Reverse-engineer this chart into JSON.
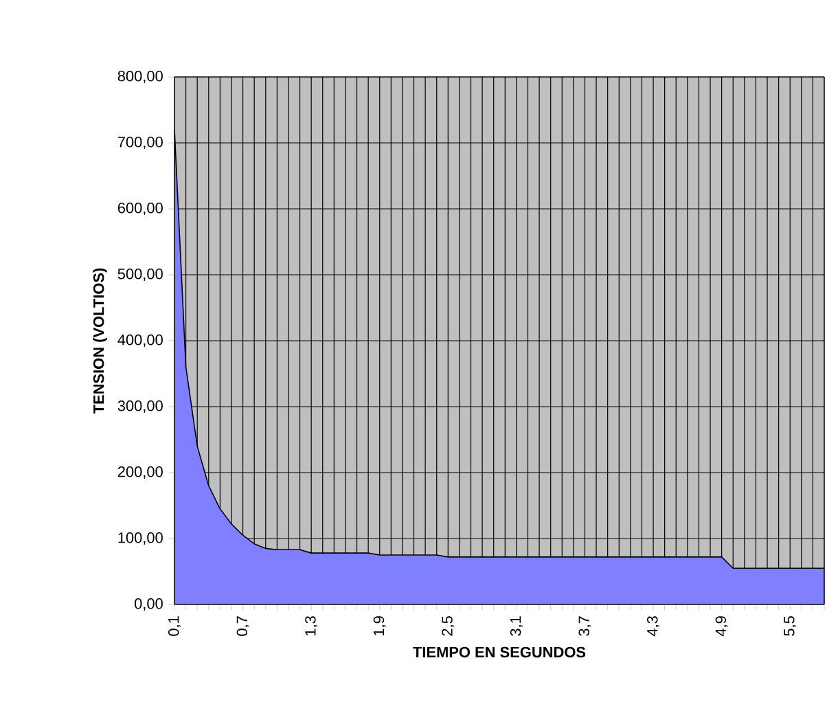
{
  "chart_data": {
    "type": "area",
    "xlabel": "TIEMPO EN SEGUNDOS",
    "ylabel": "TENSION (VOLTIOS)",
    "categories": [
      "0,1",
      null,
      null,
      null,
      null,
      null,
      "0,7",
      null,
      null,
      null,
      null,
      null,
      "1,3",
      null,
      null,
      null,
      null,
      null,
      "1,9",
      null,
      null,
      null,
      null,
      null,
      "2,5",
      null,
      null,
      null,
      null,
      null,
      "3,1",
      null,
      null,
      null,
      null,
      null,
      "3,7",
      null,
      null,
      null,
      null,
      null,
      "4,3",
      null,
      null,
      null,
      null,
      null,
      "4,9",
      null,
      null,
      null,
      null,
      null,
      "5,5",
      null,
      null,
      null
    ],
    "values": [
      720,
      360,
      240,
      180,
      145,
      122,
      105,
      92,
      85,
      83,
      83,
      83,
      78,
      78,
      78,
      78,
      78,
      78,
      75,
      75,
      75,
      75,
      75,
      75,
      72,
      72,
      72,
      72,
      72,
      72,
      72,
      72,
      72,
      72,
      72,
      72,
      72,
      72,
      72,
      72,
      72,
      72,
      72,
      72,
      72,
      72,
      72,
      72,
      72,
      55,
      55,
      55,
      55,
      55,
      55,
      55,
      55,
      55
    ],
    "color": "#8080ff",
    "ylim": [
      0,
      800
    ],
    "yticks": [
      {
        "value": 0,
        "label": "0,00"
      },
      {
        "value": 100,
        "label": "100,00"
      },
      {
        "value": 200,
        "label": "200,00"
      },
      {
        "value": 300,
        "label": "300,00"
      },
      {
        "value": 400,
        "label": "400,00"
      },
      {
        "value": 500,
        "label": "500,00"
      },
      {
        "value": 600,
        "label": "600,00"
      },
      {
        "value": 700,
        "label": "700,00"
      },
      {
        "value": 800,
        "label": "800,00"
      }
    ],
    "grid": true
  }
}
